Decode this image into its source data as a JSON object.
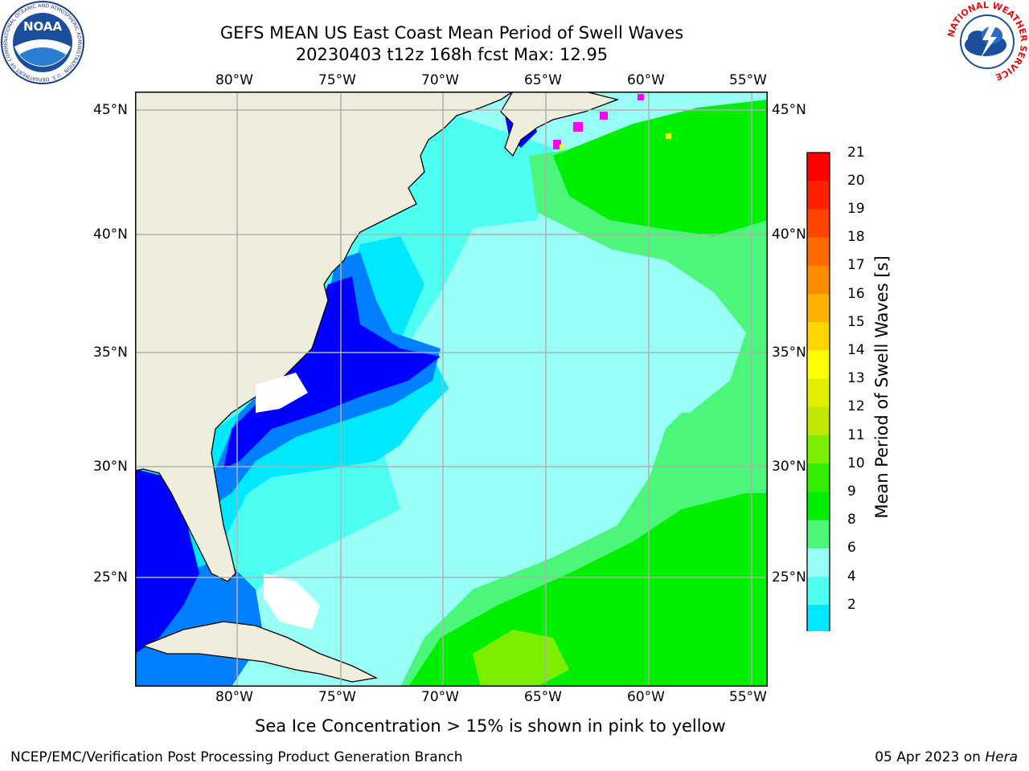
{
  "title": {
    "line1": "GEFS MEAN US East Coast Mean Period of Swell Waves",
    "line2": "20230403 t12z 168h fcst   Max: 12.95"
  },
  "map": {
    "lon_labels": [
      "80°W",
      "75°W",
      "70°W",
      "65°W",
      "60°W",
      "55°W"
    ],
    "lat_labels": [
      "45°N",
      "40°N",
      "35°N",
      "30°N",
      "25°N"
    ]
  },
  "colorbar": {
    "label": "Mean Period of Swell Waves [s]",
    "ticks": [
      "21",
      "20",
      "19",
      "18",
      "17",
      "16",
      "15",
      "14",
      "13",
      "12",
      "11",
      "10",
      "9",
      "8",
      "6",
      "4",
      "2"
    ],
    "colors": [
      "#ff0000",
      "#ff2000",
      "#ff4500",
      "#ff6a00",
      "#ff8c00",
      "#ffb000",
      "#ffd400",
      "#ffff00",
      "#e0f000",
      "#c0e800",
      "#7cee00",
      "#33ee00",
      "#00ee00",
      "#4cf67a",
      "#99fff6",
      "#4cfff0",
      "#00e8ff",
      "#0080ff",
      "#0000ff"
    ],
    "land_color": "#efeedd"
  },
  "note": "Sea Ice Concentration > 15% is shown in pink to yellow",
  "footer": {
    "left": "NCEP/EMC/Verification Post Processing Product Generation Branch",
    "date": "05 Apr 2023 on",
    "host": "Hera"
  },
  "logos": {
    "noaa_text": "NOAA",
    "noaa_ring": "NATIONAL OCEANIC AND ATMOSPHERIC ADMINISTRATION · U.S. DEPARTMENT OF COMMERCE",
    "nws_ring": "NATIONAL WEATHER SERVICE"
  }
}
